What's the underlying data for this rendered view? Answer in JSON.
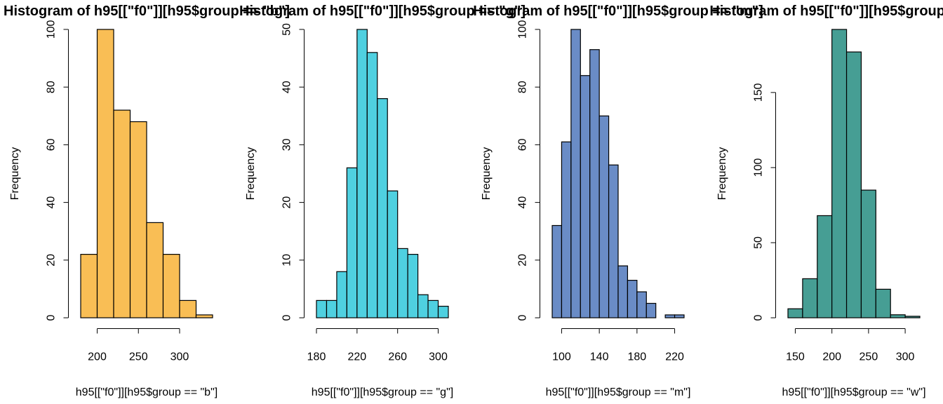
{
  "chart_data": [
    {
      "type": "histogram",
      "title": "Histogram of h95[[\"f0\"]][h95$group == \"b\"]",
      "xlabel": "h95[[\"f0\"]][h95$group == \"b\"]",
      "ylabel": "Frequency",
      "bins": [
        180,
        200,
        220,
        240,
        260,
        280,
        300,
        320,
        340
      ],
      "values": [
        22,
        100,
        72,
        68,
        33,
        22,
        6,
        1
      ],
      "color": "#f9be55",
      "xlim": [
        173.6,
        346.4
      ],
      "ylim": [
        -4,
        104
      ],
      "xticks": [
        200,
        250,
        300
      ],
      "yticks": [
        0,
        20,
        40,
        60,
        80,
        100
      ]
    },
    {
      "type": "histogram",
      "title": "Histogram of h95[[\"f0\"]][h95$group == \"g\"]",
      "xlabel": "h95[[\"f0\"]][h95$group == \"g\"]",
      "ylabel": "Frequency",
      "bins": [
        180,
        190,
        200,
        210,
        220,
        230,
        240,
        250,
        260,
        270,
        280,
        290,
        300,
        310
      ],
      "values": [
        3,
        3,
        8,
        26,
        50,
        46,
        38,
        22,
        12,
        11,
        4,
        3,
        2
      ],
      "color": "#4fd0e0",
      "xlim": [
        174.8,
        315.2
      ],
      "ylim": [
        -2,
        52
      ],
      "xticks": [
        180,
        220,
        260,
        300
      ],
      "yticks": [
        0,
        10,
        20,
        30,
        40,
        50
      ]
    },
    {
      "type": "histogram",
      "title": "Histogram of h95[[\"f0\"]][h95$group == \"m\"]",
      "xlabel": "h95[[\"f0\"]][h95$group == \"m\"]",
      "ylabel": "Frequency",
      "bins": [
        90,
        100,
        110,
        120,
        130,
        140,
        150,
        160,
        170,
        180,
        190,
        200,
        210,
        220,
        230
      ],
      "values": [
        32,
        61,
        100,
        84,
        93,
        70,
        53,
        18,
        13,
        9,
        5,
        0,
        1,
        1
      ],
      "color": "#6a8cc6",
      "xlim": [
        84.4,
        235.6
      ],
      "ylim": [
        -4,
        104
      ],
      "xticks": [
        100,
        140,
        180,
        220
      ],
      "yticks": [
        0,
        20,
        40,
        60,
        80,
        100
      ]
    },
    {
      "type": "histogram",
      "title": "Histogram of h95[[\"f0\"]][h95$group == \"w\"]",
      "xlabel": "h95[[\"f0\"]][h95$group == \"w\"]",
      "ylabel": "Frequency",
      "bins": [
        140,
        160,
        180,
        200,
        220,
        240,
        260,
        280,
        300,
        320
      ],
      "values": [
        6,
        26,
        68,
        192,
        177,
        85,
        19,
        2,
        1
      ],
      "color": "#469e94",
      "xlim": [
        132.8,
        327.2
      ],
      "ylim": [
        -7.68,
        199.68
      ],
      "xticks": [
        150,
        200,
        250,
        300
      ],
      "yticks": [
        0,
        50,
        100,
        150
      ]
    }
  ]
}
